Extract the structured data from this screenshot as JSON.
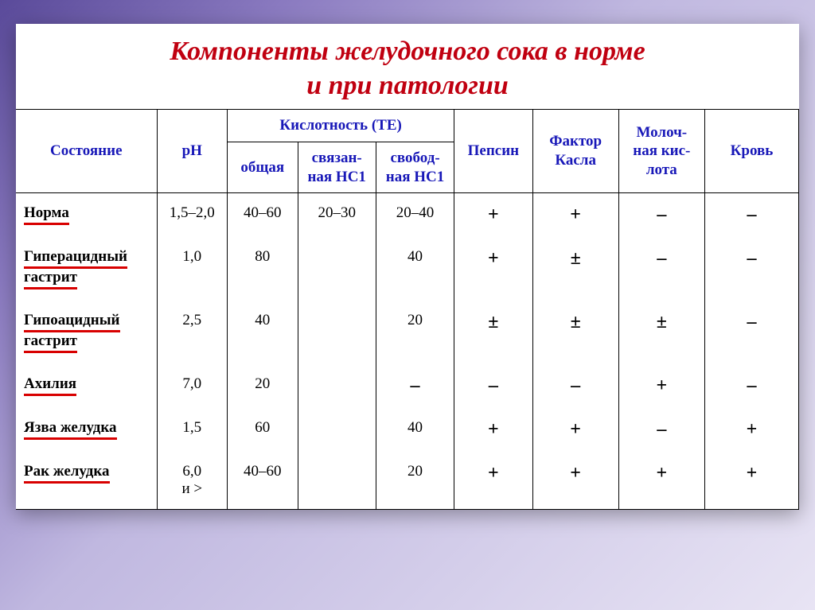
{
  "title_line1": "Компоненты желудочного сока в норме",
  "title_line2": "и при патологии",
  "headers": {
    "state": "Состояние",
    "ph": "pH",
    "acidity_group": "Кислотность (ТЕ)",
    "acidity_total": "общая",
    "acidity_bound": "связан-\nная HC1",
    "acidity_free": "свобод-\nная HC1",
    "pepsin": "Пепсин",
    "castle": "Фактор\nКасла",
    "lactic": "Молоч-\nная кис-\nлота",
    "blood": "Кровь"
  },
  "rows": [
    {
      "state": "Норма",
      "underlines": [
        "Норма"
      ],
      "ph": "1,5–2,0",
      "total": "40–60",
      "bound": "20–30",
      "free": "20–40",
      "pepsin": "+",
      "castle": "+",
      "lactic": "–",
      "blood": "–"
    },
    {
      "state": "Гиперацидный\nгастрит",
      "underlines": [
        "Гиперацидный",
        "гастрит"
      ],
      "ph": "1,0",
      "total": "80",
      "bound": "",
      "free": "40",
      "pepsin": "+",
      "castle": "±",
      "lactic": "–",
      "blood": "–"
    },
    {
      "state": "Гипоацидный\nгастрит",
      "underlines": [
        "Гипоацидный",
        "гастрит"
      ],
      "ph": "2,5",
      "total": "40",
      "bound": "",
      "free": "20",
      "pepsin": "±",
      "castle": "±",
      "lactic": "±",
      "blood": "–"
    },
    {
      "state": "Ахилия",
      "underlines": [
        "Ахилия"
      ],
      "ph": "7,0",
      "total": "20",
      "bound": "",
      "free": "–",
      "pepsin": "–",
      "castle": "–",
      "lactic": "+",
      "blood": "–"
    },
    {
      "state": "Язва желудка",
      "underlines": [
        "Язва желудка"
      ],
      "ph": "1,5",
      "total": "60",
      "bound": "",
      "free": "40",
      "pepsin": "+",
      "castle": "+",
      "lactic": "–",
      "blood": "+"
    },
    {
      "state": "Рак желудка",
      "underlines": [
        "Рак желудка"
      ],
      "ph": "6,0\nи >",
      "total": "40–60",
      "bound": "",
      "free": "20",
      "pepsin": "+",
      "castle": "+",
      "lactic": "+",
      "blood": "+"
    }
  ],
  "colors": {
    "title": "#c00010",
    "header_text": "#1818b8",
    "underline": "#d80000",
    "border": "#000000",
    "background": "#ffffff"
  },
  "fontsize": {
    "title": 34,
    "header": 19,
    "cell": 19,
    "symbol": 24
  },
  "col_widths_pct": [
    18,
    9,
    9,
    10,
    10,
    10,
    11,
    11,
    12
  ]
}
